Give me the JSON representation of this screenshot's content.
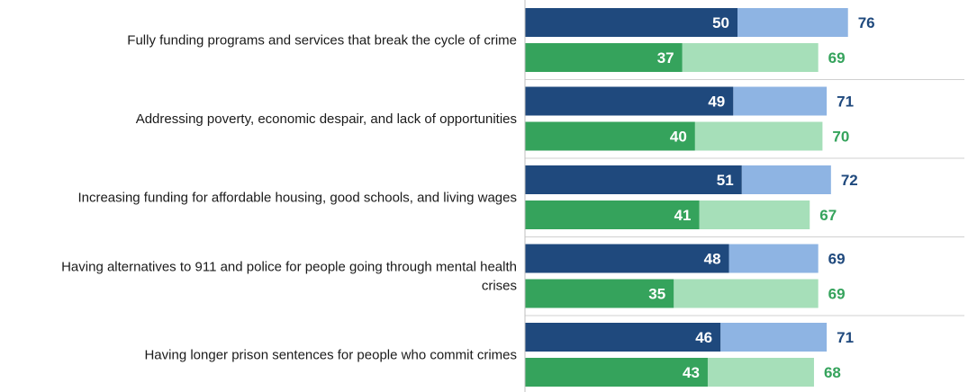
{
  "chart_data": {
    "type": "bar",
    "orientation": "horizontal",
    "stacked": true,
    "categories": [
      "Fully funding programs and services that break the cycle of crime",
      "Addressing poverty, economic despair, and lack of opportunities",
      "Increasing funding for affordable housing, good schools, and living wages",
      "Having alternatives to 911 and police for people going through mental health crises",
      "Having longer prison sentences for people who commit crimes"
    ],
    "category_lines": [
      [
        "Fully funding programs and services that break the cycle of crime"
      ],
      [
        "Addressing poverty, economic despair, and lack of opportunities"
      ],
      [
        "Increasing funding for affordable housing, good schools, and living wages"
      ],
      [
        "Having alternatives to 911 and police for people going through mental health",
        "crises"
      ],
      [
        "Having longer prison sentences for people who commit crimes"
      ]
    ],
    "groups": [
      {
        "inner_color": "#1f497d",
        "outer_color": "#8eb4e3",
        "total_label_color": "#1f497d",
        "inner_values": [
          50,
          49,
          51,
          48,
          46
        ],
        "total_values": [
          76,
          71,
          72,
          69,
          71
        ]
      },
      {
        "inner_color": "#35a35c",
        "outer_color": "#a6dfb9",
        "total_label_color": "#35a35c",
        "inner_values": [
          37,
          40,
          41,
          35,
          43
        ],
        "total_values": [
          69,
          70,
          67,
          69,
          68
        ]
      }
    ],
    "xlim": [
      0,
      100
    ],
    "title": "",
    "xlabel": "",
    "ylabel": "",
    "legend": "none",
    "grid": false
  }
}
